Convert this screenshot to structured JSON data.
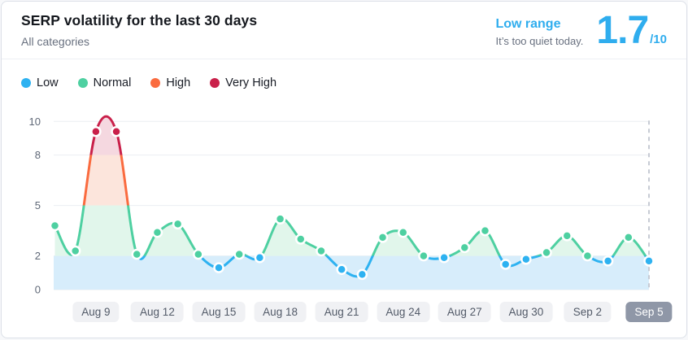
{
  "header": {
    "title": "SERP volatility for the last 30 days",
    "subtitle": "All categories",
    "status_label": "Low range",
    "status_note": "It’s too quiet today.",
    "score": "1.7",
    "score_max": "/10"
  },
  "legend": [
    {
      "label": "Low",
      "color": "#2eb2f1"
    },
    {
      "label": "Normal",
      "color": "#4ed0a1"
    },
    {
      "label": "High",
      "color": "#fa6b3f"
    },
    {
      "label": "Very High",
      "color": "#c9204a"
    }
  ],
  "chart_data": {
    "type": "line",
    "title": "SERP volatility for the last 30 days",
    "x": [
      "Aug 7",
      "Aug 8",
      "Aug 9",
      "Aug 10",
      "Aug 11",
      "Aug 12",
      "Aug 13",
      "Aug 14",
      "Aug 15",
      "Aug 16",
      "Aug 17",
      "Aug 18",
      "Aug 19",
      "Aug 20",
      "Aug 21",
      "Aug 22",
      "Aug 23",
      "Aug 24",
      "Aug 25",
      "Aug 26",
      "Aug 27",
      "Aug 28",
      "Aug 29",
      "Aug 30",
      "Aug 31",
      "Sep 1",
      "Sep 2",
      "Sep 3",
      "Sep 4",
      "Sep 5"
    ],
    "values": [
      3.8,
      2.3,
      9.4,
      9.4,
      2.1,
      3.4,
      3.9,
      2.1,
      1.3,
      2.1,
      1.9,
      4.2,
      3.0,
      2.3,
      1.2,
      0.9,
      3.1,
      3.4,
      2.0,
      1.9,
      2.5,
      3.5,
      1.5,
      1.8,
      2.2,
      3.2,
      2.0,
      1.7,
      3.1,
      1.7
    ],
    "xlabel": "",
    "ylabel": "",
    "ylim": [
      0,
      10
    ],
    "y_ticks": [
      0,
      2,
      5,
      8,
      10
    ],
    "x_tick_labels": [
      "Aug 9",
      "Aug 12",
      "Aug 15",
      "Aug 18",
      "Aug 21",
      "Aug 24",
      "Aug 27",
      "Aug 30",
      "Sep 2",
      "Sep 5"
    ],
    "active_x_tick": "Sep 5",
    "grid": true,
    "legend_position": "top-left",
    "today_marker": {
      "x": "Sep 5",
      "style": "dashed-vertical-line"
    },
    "ranges": [
      {
        "label": "Low",
        "min": 0,
        "max": 2,
        "line": "#2eb2f1",
        "fill": "#d7edfb"
      },
      {
        "label": "Normal",
        "min": 2,
        "max": 5,
        "line": "#4ed0a1",
        "fill": "#e1f6eb"
      },
      {
        "label": "High",
        "min": 5,
        "max": 8,
        "line": "#fa6b3f",
        "fill": "#fce5dc"
      },
      {
        "label": "Very High",
        "min": 8,
        "max": 10,
        "line": "#c9204a",
        "fill": "#f5d8e0"
      }
    ]
  },
  "colors": {
    "accent_blue": "#2fadee",
    "grid_line": "#eceef2",
    "baseline": "#e6e9ee",
    "today_line": "#c7cbd4",
    "chip_bg": "#f0f1f4",
    "chip_text": "#525a68",
    "chip_active_bg": "#8f97a7",
    "chip_active_text": "#ffffff"
  }
}
